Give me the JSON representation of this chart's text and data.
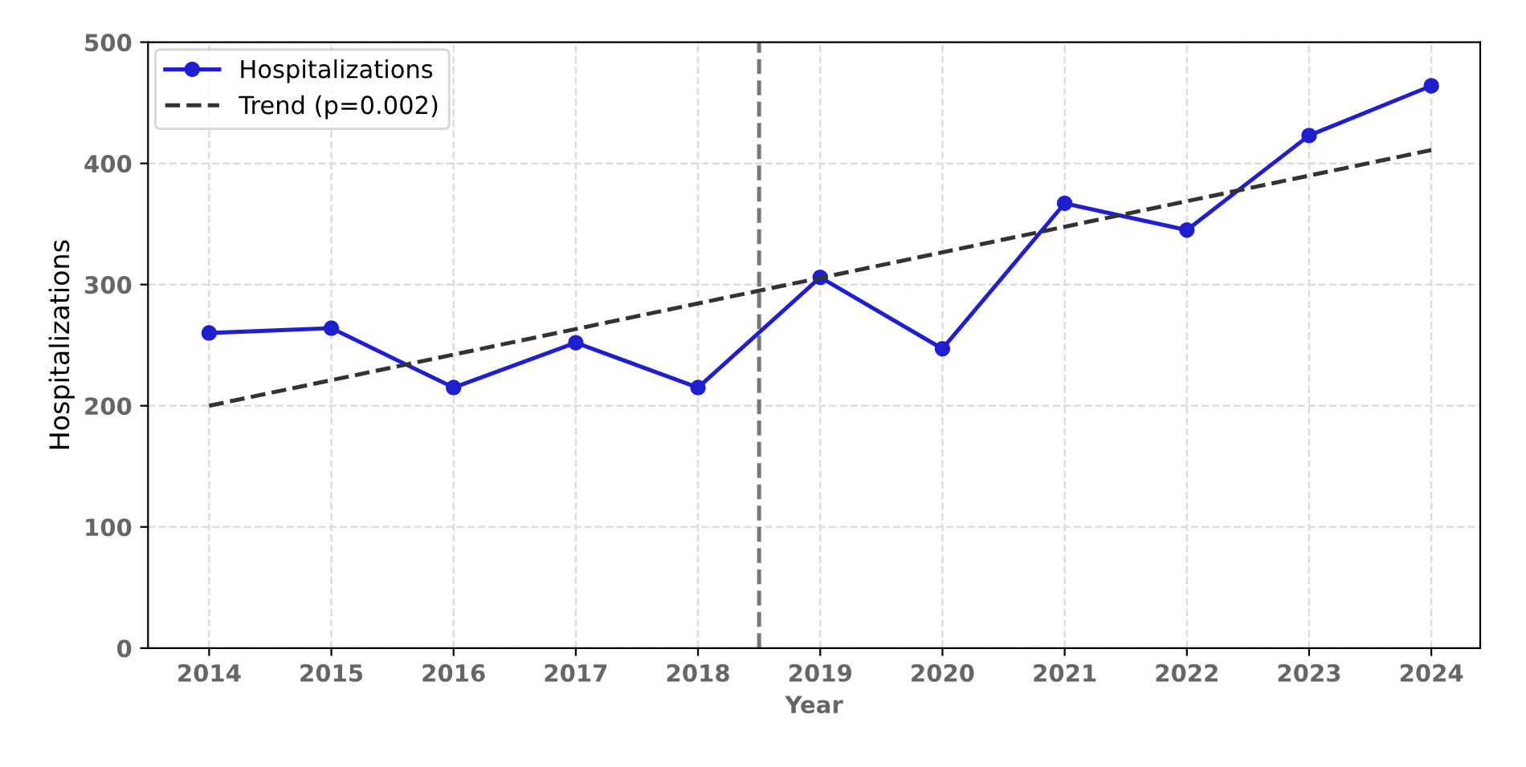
{
  "chart_data": {
    "type": "line",
    "xlabel": "Year",
    "ylabel": "Hospitalizations",
    "x": [
      2014,
      2015,
      2016,
      2017,
      2018,
      2019,
      2020,
      2021,
      2022,
      2023,
      2024
    ],
    "series": [
      {
        "name": "Hospitalizations",
        "color": "#1f1fd0",
        "marker": "circle",
        "line_style": "solid",
        "values": [
          260,
          264,
          215,
          252,
          215,
          306,
          247,
          367,
          345,
          423,
          464
        ]
      },
      {
        "name": "Trend (p=0.002)",
        "type": "line",
        "color": "#333333",
        "marker": "none",
        "line_style": "dashed",
        "x": [
          2014,
          2024
        ],
        "values": [
          200,
          411
        ]
      }
    ],
    "xlim": [
      2013.5,
      2024.4
    ],
    "xticks": [
      2014,
      2015,
      2016,
      2017,
      2018,
      2019,
      2020,
      2021,
      2022,
      2023,
      2024
    ],
    "ylim": [
      0,
      500
    ],
    "yticks": [
      0,
      100,
      200,
      300,
      400,
      500
    ],
    "ref_lines": [
      {
        "axis": "x",
        "value": 2018.5,
        "label": null,
        "color": "#777777",
        "line_style": "dashed"
      }
    ],
    "grid": true,
    "legend": "top left"
  }
}
